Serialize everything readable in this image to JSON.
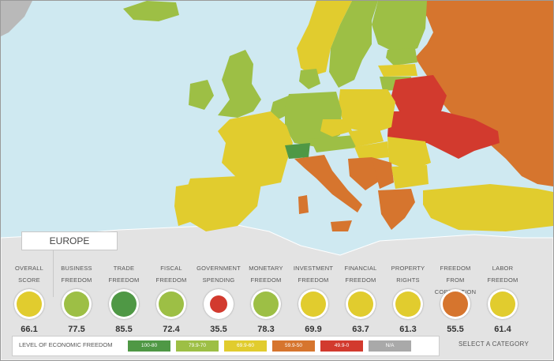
{
  "region": {
    "label": "EUROPE"
  },
  "categories": [
    {
      "line1": "OVERALL",
      "line2": "SCORE",
      "score": "66.1",
      "color": "#e1cc2e"
    },
    {
      "line1": "BUSINESS",
      "line2": "FREEDOM",
      "score": "77.5",
      "color": "#9dbf45"
    },
    {
      "line1": "TRADE",
      "line2": "FREEDOM",
      "score": "85.5",
      "color": "#4f9845"
    },
    {
      "line1": "FISCAL",
      "line2": "FREEDOM",
      "score": "72.4",
      "color": "#9dbf45"
    },
    {
      "line1": "GOVERNMENT",
      "line2": "SPENDING",
      "score": "35.5",
      "color": "#d23a2e"
    },
    {
      "line1": "MONETARY",
      "line2": "FREEDOM",
      "score": "78.3",
      "color": "#9dbf45"
    },
    {
      "line1": "INVESTMENT",
      "line2": "FREEDOM",
      "score": "69.9",
      "color": "#e1cc2e"
    },
    {
      "line1": "FINANCIAL",
      "line2": "FREEDOM",
      "score": "63.7",
      "color": "#e1cc2e"
    },
    {
      "line1": "PROPERTY",
      "line2": "RIGHTS",
      "score": "61.3",
      "color": "#e1cc2e"
    },
    {
      "line1": "FREEDOM FROM",
      "line2": "CORRUPTION",
      "score": "55.5",
      "color": "#d6752e"
    },
    {
      "line1": "LABOR",
      "line2": "FREEDOM",
      "score": "61.4",
      "color": "#e1cc2e"
    }
  ],
  "legend": {
    "title": "LEVEL OF ECONOMIC FREEDOM",
    "items": [
      {
        "label": "100-80",
        "color": "#4f9845"
      },
      {
        "label": "79.9-70",
        "color": "#9dbf45"
      },
      {
        "label": "69.9-60",
        "color": "#e1cc2e"
      },
      {
        "label": "59.9-50",
        "color": "#d6752e"
      },
      {
        "label": "49.9-0",
        "color": "#d23a2e"
      },
      {
        "label": "N/A",
        "color": "#a9a9a9"
      }
    ]
  },
  "select_category": "SELECT A CATEGORY"
}
